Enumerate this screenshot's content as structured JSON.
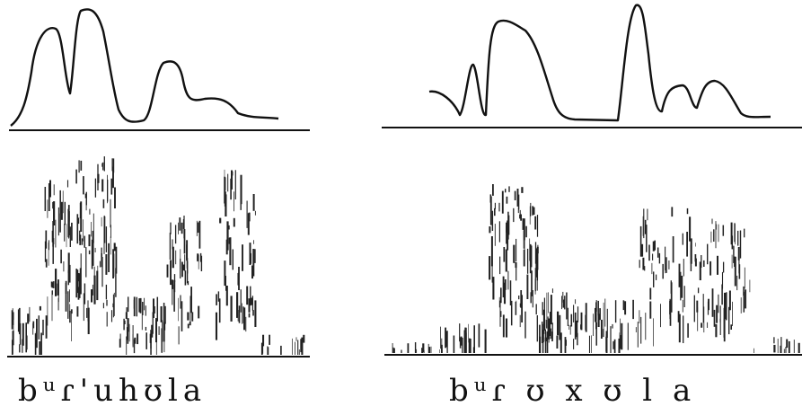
{
  "panels": [
    {
      "transcription": "bᵘɾ'uhʊla"
    },
    {
      "transcription": "bᵘɾ ʊ x ʊ l a"
    }
  ]
}
